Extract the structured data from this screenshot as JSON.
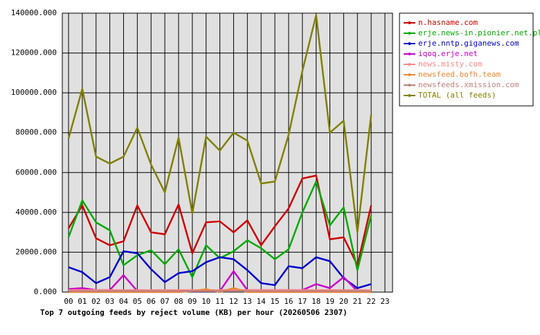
{
  "chart_data": {
    "type": "line",
    "title": "Top 7 outgoing feeds by reject volume (KB) per hour (20260506 2307)",
    "categories": [
      "00",
      "01",
      "02",
      "03",
      "04",
      "05",
      "06",
      "07",
      "08",
      "09",
      "10",
      "11",
      "12",
      "13",
      "14",
      "15",
      "16",
      "17",
      "18",
      "19",
      "20",
      "21",
      "22",
      "23"
    ],
    "ylim": [
      0,
      140000
    ],
    "yticks": [
      {
        "value": 0,
        "label": "0.000"
      },
      {
        "value": 20000,
        "label": "20000.000"
      },
      {
        "value": 40000,
        "label": "40000.000"
      },
      {
        "value": 60000,
        "label": "60000.000"
      },
      {
        "value": 80000,
        "label": "80000.000"
      },
      {
        "value": 100000,
        "label": "100000.000"
      },
      {
        "value": 120000,
        "label": "120000.000"
      },
      {
        "value": 140000,
        "label": "140000.000"
      }
    ],
    "grid": true,
    "legend": "right",
    "series": [
      {
        "name": "n.hasname.com",
        "color": "#cc0000",
        "values": [
          32000,
          43500,
          27000,
          23500,
          25500,
          43500,
          30000,
          29000,
          44000,
          19500,
          35000,
          35500,
          30000,
          36000,
          23500,
          33000,
          42000,
          57000,
          58500,
          26500,
          27500,
          13500,
          43500,
          null
        ]
      },
      {
        "name": "erje.news-in.pionier.net.pl",
        "color": "#00aa00",
        "values": [
          27500,
          46000,
          35000,
          31000,
          13500,
          18500,
          21000,
          14000,
          21500,
          7500,
          23500,
          17000,
          20500,
          26000,
          22000,
          16500,
          21500,
          40000,
          55500,
          33500,
          42500,
          11000,
          38500,
          null
        ]
      },
      {
        "name": "erje.nntp.giganews.com",
        "color": "#0000cc",
        "values": [
          12500,
          10000,
          4500,
          7500,
          20500,
          19500,
          11500,
          5000,
          9500,
          10500,
          15000,
          17500,
          16500,
          11000,
          4500,
          3500,
          13000,
          12000,
          17500,
          15500,
          7000,
          2000,
          4000,
          null
        ]
      },
      {
        "name": "iqoq.erje.net",
        "color": "#cc00cc",
        "values": [
          1500,
          2000,
          1000,
          1000,
          8500,
          500,
          500,
          500,
          500,
          500,
          500,
          500,
          10500,
          1000,
          1000,
          1000,
          1000,
          1000,
          4000,
          2000,
          7500,
          500,
          500,
          null
        ]
      },
      {
        "name": "news.misty.com",
        "color": "#ff8888",
        "values": [
          1000,
          1000,
          1000,
          1000,
          1000,
          1000,
          1000,
          1000,
          1000,
          1000,
          1000,
          1000,
          1000,
          1000,
          1000,
          1000,
          1000,
          1000,
          1000,
          1000,
          1000,
          1000,
          1000,
          null
        ]
      },
      {
        "name": "newsfeed.bofh.team",
        "color": "#ee8833",
        "values": [
          0,
          0,
          0,
          0,
          0,
          0,
          0,
          0,
          0,
          500,
          1500,
          0,
          2000,
          0,
          0,
          0,
          0,
          0,
          0,
          0,
          0,
          0,
          0,
          null
        ]
      },
      {
        "name": "newsfeeds.xmission.com",
        "color": "#c08080",
        "values": [
          500,
          500,
          500,
          500,
          500,
          500,
          500,
          500,
          500,
          500,
          500,
          500,
          500,
          500,
          500,
          500,
          500,
          500,
          500,
          500,
          500,
          500,
          500,
          null
        ]
      },
      {
        "name": "TOTAL (all feeds)",
        "color": "#808000",
        "values": [
          77000,
          102000,
          68000,
          64500,
          68000,
          82500,
          64000,
          50000,
          77500,
          39500,
          78000,
          71000,
          80000,
          76000,
          54500,
          55500,
          79000,
          111000,
          139000,
          80000,
          86000,
          30000,
          89000,
          null
        ]
      }
    ]
  }
}
